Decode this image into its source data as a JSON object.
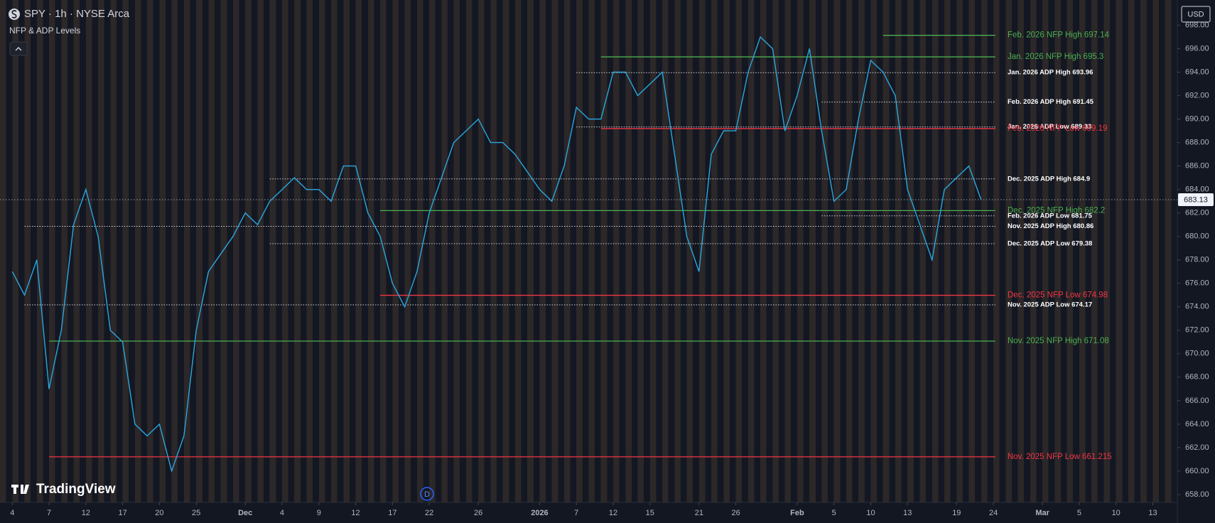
{
  "chart_data": {
    "type": "line",
    "title": "SPY · 1h · NYSE Arca",
    "subtitle": "NFP & ADP Levels",
    "currency": "USD",
    "watermark": "TradingView",
    "event_marker": "D",
    "x": [
      "2025-11-04",
      "2025-11-05",
      "2025-11-06",
      "2025-11-07",
      "2025-11-10",
      "2025-11-11",
      "2025-11-12",
      "2025-11-13",
      "2025-11-14",
      "2025-11-17",
      "2025-11-18",
      "2025-11-19",
      "2025-11-20",
      "2025-11-21",
      "2025-11-24",
      "2025-11-25",
      "2025-11-26",
      "2025-11-28",
      "2025-12-01",
      "2025-12-02",
      "2025-12-03",
      "2025-12-04",
      "2025-12-05",
      "2025-12-08",
      "2025-12-09",
      "2025-12-10",
      "2025-12-11",
      "2025-12-12",
      "2025-12-15",
      "2025-12-16",
      "2025-12-17",
      "2025-12-18",
      "2025-12-19",
      "2025-12-22",
      "2025-12-23",
      "2025-12-24",
      "2025-12-26",
      "2025-12-29",
      "2025-12-30",
      "2025-12-31",
      "2026-01-02",
      "2026-01-05",
      "2026-01-06",
      "2026-01-07",
      "2026-01-08",
      "2026-01-09",
      "2026-01-12",
      "2026-01-13",
      "2026-01-14",
      "2026-01-15",
      "2026-01-16",
      "2026-01-20",
      "2026-01-21",
      "2026-01-22",
      "2026-01-23",
      "2026-01-26",
      "2026-01-27",
      "2026-01-28",
      "2026-01-29",
      "2026-01-30",
      "2026-02-02",
      "2026-02-03",
      "2026-02-04",
      "2026-02-05",
      "2026-02-06",
      "2026-02-09",
      "2026-02-10",
      "2026-02-11",
      "2026-02-12",
      "2026-02-13",
      "2026-02-17",
      "2026-02-18",
      "2026-02-19",
      "2026-02-20",
      "2026-02-23"
    ],
    "series": [
      {
        "color": "#29a8e0",
        "values": [
          677,
          675,
          678,
          667,
          672,
          681,
          684,
          680,
          672,
          671,
          664,
          663,
          664,
          660,
          663,
          672,
          677,
          680,
          682,
          681,
          683,
          684,
          685,
          684,
          684,
          683,
          686,
          686,
          682,
          680,
          676,
          674,
          677,
          682,
          685,
          688,
          690,
          688,
          688,
          687,
          684,
          683,
          686,
          691,
          690,
          690,
          694,
          694,
          692,
          693,
          694,
          680,
          677,
          687,
          689,
          689,
          694,
          697,
          696,
          689,
          692,
          696,
          689,
          683,
          684,
          690,
          695,
          694,
          692,
          684,
          678,
          684,
          685,
          686,
          683.13
        ]
      }
    ],
    "last_price": 683.13,
    "ylim": [
      657.33,
      700.15
    ],
    "yticks": [
      {
        "value": 658,
        "label": "658.00"
      },
      {
        "value": 660,
        "label": "660.00"
      },
      {
        "value": 662,
        "label": "662.00"
      },
      {
        "value": 664,
        "label": "664.00"
      },
      {
        "value": 666,
        "label": "666.00"
      },
      {
        "value": 668,
        "label": "668.00"
      },
      {
        "value": 670,
        "label": "670.00"
      },
      {
        "value": 672,
        "label": "672.00"
      },
      {
        "value": 674,
        "label": "674.00"
      },
      {
        "value": 676,
        "label": "676.00"
      },
      {
        "value": 678,
        "label": "678.00"
      },
      {
        "value": 680,
        "label": "680.00"
      },
      {
        "value": 682,
        "label": "682.00"
      },
      {
        "value": 684,
        "label": "684.00"
      },
      {
        "value": 686,
        "label": "686.00"
      },
      {
        "value": 688,
        "label": "688.00"
      },
      {
        "value": 690,
        "label": "690.00"
      },
      {
        "value": 692,
        "label": "692.00"
      },
      {
        "value": 694,
        "label": "694.00"
      },
      {
        "value": 696,
        "label": "696.00"
      },
      {
        "value": 698,
        "label": "698.00"
      }
    ],
    "xlim": [
      "2025-11-03",
      "2026-03-17"
    ],
    "xticks": [
      {
        "value": "2025-11-04",
        "label": "4"
      },
      {
        "value": "2025-11-07",
        "label": "7"
      },
      {
        "value": "2025-11-12",
        "label": "12"
      },
      {
        "value": "2025-11-17",
        "label": "17"
      },
      {
        "value": "2025-11-20",
        "label": "20"
      },
      {
        "value": "2025-11-25",
        "label": "25"
      },
      {
        "value": "2025-12-01",
        "label": "Dec"
      },
      {
        "value": "2025-12-04",
        "label": "4"
      },
      {
        "value": "2025-12-09",
        "label": "9"
      },
      {
        "value": "2025-12-12",
        "label": "12"
      },
      {
        "value": "2025-12-17",
        "label": "17"
      },
      {
        "value": "2025-12-22",
        "label": "22"
      },
      {
        "value": "2025-12-26",
        "label": "26"
      },
      {
        "value": "2026-01-02",
        "label": "2026"
      },
      {
        "value": "2026-01-07",
        "label": "7"
      },
      {
        "value": "2026-01-12",
        "label": "12"
      },
      {
        "value": "2026-01-15",
        "label": "15"
      },
      {
        "value": "2026-01-21",
        "label": "21"
      },
      {
        "value": "2026-01-26",
        "label": "26"
      },
      {
        "value": "2026-02-02",
        "label": "Feb"
      },
      {
        "value": "2026-02-05",
        "label": "5"
      },
      {
        "value": "2026-02-10",
        "label": "10"
      },
      {
        "value": "2026-02-13",
        "label": "13"
      },
      {
        "value": "2026-02-19",
        "label": "19"
      },
      {
        "value": "2026-02-24",
        "label": "24"
      },
      {
        "value": "2026-03-02",
        "label": "Mar"
      },
      {
        "value": "2026-03-05",
        "label": "5"
      },
      {
        "value": "2026-03-10",
        "label": "10"
      },
      {
        "value": "2026-03-13",
        "label": "13"
      }
    ],
    "levels": [
      {
        "label": "Feb. 2026 NFP High 697.14",
        "value": 697.14,
        "start": "2026-02-11",
        "color": "#4caf50",
        "style": "solid"
      },
      {
        "label": "Jan. 2026 NFP High 695.3",
        "value": 695.3,
        "start": "2026-01-09",
        "color": "#4caf50",
        "style": "solid"
      },
      {
        "label": "Jan. 2026 ADP High 693.96",
        "value": 693.96,
        "start": "2026-01-07",
        "color": "#d1d4dc",
        "style": "dotted"
      },
      {
        "label": "Feb. 2026 ADP High 691.45",
        "value": 691.45,
        "start": "2026-02-04",
        "color": "#d1d4dc",
        "style": "dotted"
      },
      {
        "label": "Jan. 2026 ADP Low 689.33",
        "value": 689.33,
        "start": "2026-01-07",
        "color": "#d1d4dc",
        "style": "dotted"
      },
      {
        "label": "Feb. 2026 NFP Low 689.19",
        "value": 689.19,
        "start": "2026-01-09",
        "color": "#f23645",
        "style": "solid"
      },
      {
        "label": "Dec. 2025 ADP High 684.9",
        "value": 684.9,
        "start": "2025-12-03",
        "color": "#d1d4dc",
        "style": "dotted"
      },
      {
        "label": "Dec. 2025 NFP High 682.2",
        "value": 682.2,
        "start": "2025-12-16",
        "color": "#4caf50",
        "style": "solid"
      },
      {
        "label": "Feb. 2026 ADP Low 681.75",
        "value": 681.75,
        "start": "2026-02-04",
        "color": "#d1d4dc",
        "style": "dotted"
      },
      {
        "label": "Nov. 2025 ADP High 680.86",
        "value": 680.86,
        "start": "2025-11-05",
        "color": "#d1d4dc",
        "style": "dotted"
      },
      {
        "label": "Dec. 2025 ADP Low 679.38",
        "value": 679.38,
        "start": "2025-12-03",
        "color": "#d1d4dc",
        "style": "dotted"
      },
      {
        "label": "Dec. 2025 NFP Low 674.98",
        "value": 674.98,
        "start": "2025-12-16",
        "color": "#f23645",
        "style": "solid"
      },
      {
        "label": "Nov. 2025 ADP Low 674.17",
        "value": 674.17,
        "start": "2025-11-05",
        "color": "#d1d4dc",
        "style": "dotted"
      },
      {
        "label": "Nov. 2025 NFP High 671.08",
        "value": 671.08,
        "start": "2025-11-07",
        "color": "#4caf50",
        "style": "solid"
      },
      {
        "label": "Nov. 2025 NFP Low 661.215",
        "value": 661.215,
        "start": "2025-11-07",
        "color": "#f23645",
        "style": "solid"
      }
    ]
  }
}
